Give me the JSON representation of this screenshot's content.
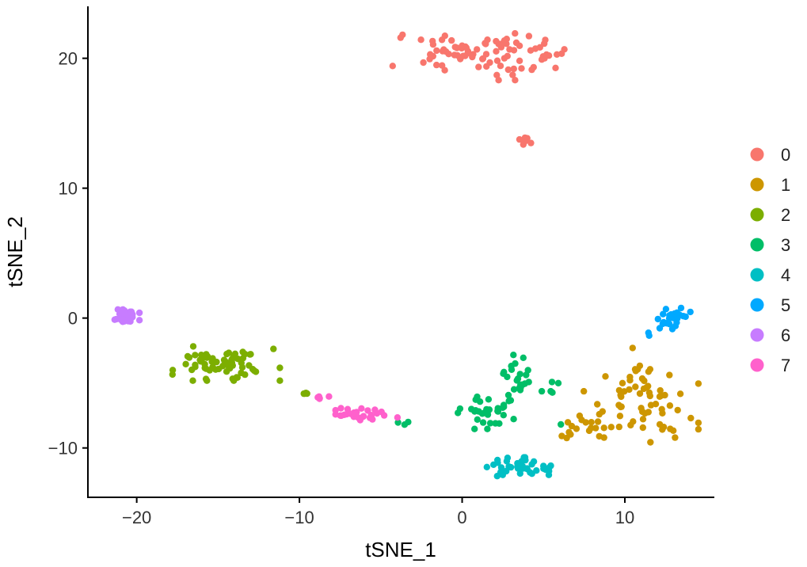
{
  "chart_data": {
    "type": "scatter",
    "title": "",
    "xlabel": "tSNE_1",
    "ylabel": "tSNE_2",
    "xlim": [
      -23,
      15.5
    ],
    "ylim": [
      -13.8,
      24
    ],
    "xticks": [
      -20,
      -10,
      0,
      10
    ],
    "yticks": [
      -10,
      0,
      10,
      20
    ],
    "grid": false,
    "legend": {
      "placement": "right",
      "title": ""
    },
    "series": [
      {
        "name": "0",
        "color": "#F8766D",
        "clusters": [
          {
            "cx": 1.0,
            "cy": 20.3,
            "sx": 2.4,
            "sy": 0.9,
            "n": 88
          },
          {
            "cx": 3.9,
            "cy": 13.8,
            "sx": 0.2,
            "sy": 0.3,
            "n": 6
          }
        ]
      },
      {
        "name": "1",
        "color": "#CD9600",
        "clusters": [
          {
            "cx": 11.0,
            "cy": -6.8,
            "sx": 1.6,
            "sy": 1.3,
            "n": 62
          },
          {
            "cx": 7.8,
            "cy": -8.0,
            "sx": 0.9,
            "sy": 0.5,
            "n": 14
          },
          {
            "cx": 6.5,
            "cy": -9.2,
            "sx": 0.2,
            "sy": 0.4,
            "n": 4
          },
          {
            "cx": 10.8,
            "cy": -3.4,
            "sx": 0.3,
            "sy": 0.5,
            "n": 4
          }
        ]
      },
      {
        "name": "2",
        "color": "#7CAE00",
        "clusters": [
          {
            "cx": -14.5,
            "cy": -3.5,
            "sx": 1.5,
            "sy": 0.6,
            "n": 72
          },
          {
            "cx": -9.7,
            "cy": -5.8,
            "sx": 0.2,
            "sy": 0.1,
            "n": 4
          }
        ]
      },
      {
        "name": "3",
        "color": "#00BE67",
        "clusters": [
          {
            "cx": 1.5,
            "cy": -7.0,
            "sx": 0.8,
            "sy": 0.7,
            "n": 34
          },
          {
            "cx": 3.3,
            "cy": -4.6,
            "sx": 0.5,
            "sy": 0.8,
            "n": 22
          },
          {
            "cx": 5.4,
            "cy": -5.6,
            "sx": 0.3,
            "sy": 0.4,
            "n": 5
          },
          {
            "cx": 6.2,
            "cy": -8.2,
            "sx": 0.1,
            "sy": 0.1,
            "n": 1
          },
          {
            "cx": -3.5,
            "cy": -8.1,
            "sx": 0.2,
            "sy": 0.1,
            "n": 3
          }
        ]
      },
      {
        "name": "4",
        "color": "#00BFC4",
        "clusters": [
          {
            "cx": 3.5,
            "cy": -11.5,
            "sx": 0.9,
            "sy": 0.35,
            "n": 38
          },
          {
            "cx": 5.3,
            "cy": -11.8,
            "sx": 0.25,
            "sy": 0.15,
            "n": 4
          }
        ]
      },
      {
        "name": "5",
        "color": "#00A9FF",
        "clusters": [
          {
            "cx": 13.1,
            "cy": -0.1,
            "sx": 0.5,
            "sy": 0.4,
            "n": 24
          },
          {
            "cx": 11.7,
            "cy": -1.2,
            "sx": 0.2,
            "sy": 0.1,
            "n": 2
          }
        ]
      },
      {
        "name": "6",
        "color": "#C77CFF",
        "clusters": [
          {
            "cx": -20.6,
            "cy": 0.0,
            "sx": 0.35,
            "sy": 0.3,
            "n": 40
          }
        ]
      },
      {
        "name": "7",
        "color": "#FF61CC",
        "clusters": [
          {
            "cx": -5.8,
            "cy": -7.4,
            "sx": 0.9,
            "sy": 0.25,
            "n": 28
          },
          {
            "cx": -8.9,
            "cy": -6.1,
            "sx": 0.4,
            "sy": 0.1,
            "n": 5
          }
        ]
      }
    ]
  }
}
